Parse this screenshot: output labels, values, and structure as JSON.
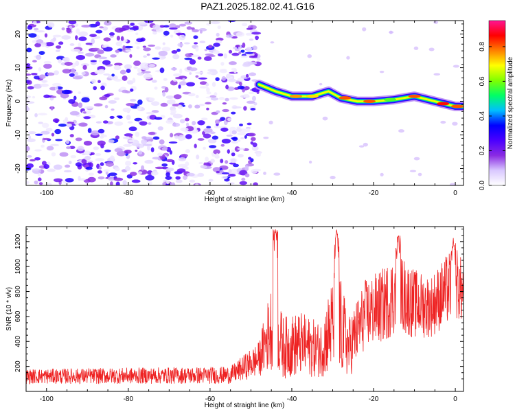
{
  "title": "PAZ1.2025.182.02.41.G16",
  "colors": {
    "snr_line": "#ee2222",
    "frame": "#000000"
  },
  "chart_data": [
    {
      "type": "heatmap",
      "xlabel": "Height of straight line (km)",
      "ylabel": "Frequency (Hz)",
      "xlim": [
        -105,
        2
      ],
      "ylim": [
        -25,
        24
      ],
      "xticks": [
        -100,
        -80,
        -60,
        -40,
        -20,
        0
      ],
      "yticks": [
        -20,
        -10,
        0,
        10,
        20
      ],
      "colorbar": {
        "label": "Normalized spectral amplitude",
        "range": [
          0.0,
          0.95
        ],
        "ticks": [
          "0.0",
          "0.2",
          "0.4",
          "0.6",
          "0.8"
        ],
        "colormap": [
          "#ffffff",
          "#d9c8ff",
          "#8a2be2",
          "#4b00ff",
          "#0000ff",
          "#00bfff",
          "#00ff66",
          "#80ff00",
          "#ffff00",
          "#ff8000",
          "#ff0000",
          "#ff1493"
        ]
      },
      "signal_track": [
        {
          "x": -48,
          "y": 5
        },
        {
          "x": -44,
          "y": 3
        },
        {
          "x": -40,
          "y": 1.5
        },
        {
          "x": -35,
          "y": 1.5
        },
        {
          "x": -31,
          "y": 3
        },
        {
          "x": -28,
          "y": 1
        },
        {
          "x": -24,
          "y": 0
        },
        {
          "x": -20,
          "y": 0
        },
        {
          "x": -15,
          "y": 0.5
        },
        {
          "x": -10,
          "y": 1.5
        },
        {
          "x": -5,
          "y": 0
        },
        {
          "x": 0,
          "y": -1.5
        },
        {
          "x": 2,
          "y": -1.5
        }
      ],
      "noise_region": {
        "x": [
          -105,
          -48
        ],
        "y": [
          -25,
          24
        ]
      }
    },
    {
      "type": "line",
      "xlabel": "Height of straight line (km)",
      "ylabel": "SNR (10 * v/v)",
      "xlim": [
        -105,
        2
      ],
      "ylim": [
        0,
        1320
      ],
      "xticks": [
        -100,
        -80,
        -60,
        -40,
        -20,
        0
      ],
      "yticks": [
        200,
        400,
        600,
        800,
        1000,
        1200
      ],
      "series": [
        {
          "envelope": [
            {
              "x": -105,
              "base": 120,
              "amp": 60
            },
            {
              "x": -55,
              "base": 130,
              "amp": 70
            },
            {
              "x": -48,
              "base": 260,
              "amp": 140
            },
            {
              "x": -45,
              "base": 520,
              "amp": 350
            },
            {
              "x": -42,
              "base": 350,
              "amp": 250
            },
            {
              "x": -38,
              "base": 380,
              "amp": 260
            },
            {
              "x": -33,
              "base": 330,
              "amp": 220
            },
            {
              "x": -29,
              "base": 600,
              "amp": 450
            },
            {
              "x": -26,
              "base": 350,
              "amp": 250
            },
            {
              "x": -22,
              "base": 620,
              "amp": 280
            },
            {
              "x": -18,
              "base": 680,
              "amp": 300
            },
            {
              "x": -14,
              "base": 800,
              "amp": 330
            },
            {
              "x": -10,
              "base": 700,
              "amp": 280
            },
            {
              "x": -6,
              "base": 680,
              "amp": 250
            },
            {
              "x": -3,
              "base": 780,
              "amp": 280
            },
            {
              "x": 0,
              "base": 880,
              "amp": 300
            },
            {
              "x": 2,
              "base": 780,
              "amp": 250
            }
          ],
          "peaks": [
            {
              "x": -44,
              "y": 1300
            },
            {
              "x": -29,
              "y": 1300
            },
            {
              "x": -14,
              "y": 1250
            },
            {
              "x": -0.5,
              "y": 1230
            }
          ]
        }
      ]
    }
  ]
}
